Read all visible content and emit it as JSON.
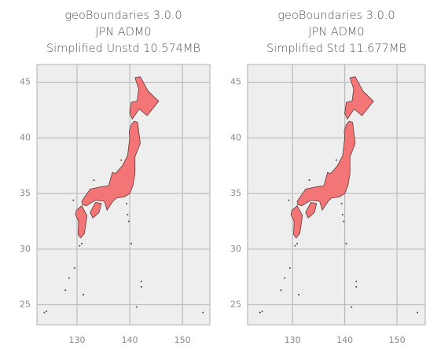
{
  "chart_data": [
    {
      "type": "map",
      "title": "geoBoundaries 3.0.0\nJPN ADM0\nSimplified Unstd 10.574MB",
      "xlim": [
        122.4,
        155.2
      ],
      "ylim": [
        23.2,
        46.6
      ],
      "xticks": [
        130,
        140,
        150
      ],
      "yticks": [
        25,
        30,
        35,
        40,
        45
      ],
      "grid": true,
      "color": "#f47575"
    },
    {
      "type": "map",
      "title": "geoBoundaries 3.0.0\nJPN ADM0\nSimplified Std 11.677MB",
      "xlim": [
        121.4,
        155.4
      ],
      "ylim": [
        23.2,
        46.6
      ],
      "xticks": [
        130,
        140,
        150
      ],
      "yticks": [
        25,
        30,
        35,
        40,
        45
      ],
      "grid": true,
      "color": "#f47575"
    }
  ]
}
